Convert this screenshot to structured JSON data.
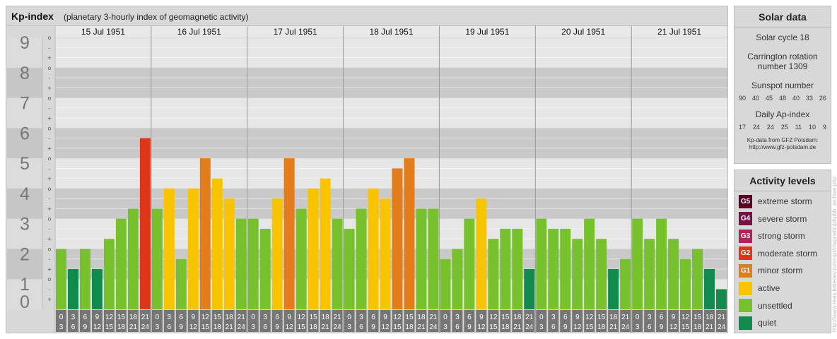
{
  "title": {
    "main": "Kp-index",
    "sub": "(planetary 3-hourly index of geomagnetic activity)"
  },
  "colors": {
    "quiet": "#118a4e",
    "unsettled": "#77c12c",
    "active": "#f8c400",
    "G1": "#e37d1c",
    "G2": "#de3518",
    "G3": "#b0225a",
    "G4": "#7a0f46",
    "G5": "#5b0025"
  },
  "chart_data": {
    "type": "bar",
    "ylim": [
      0,
      9
    ],
    "y_ticks": [
      "0",
      "1",
      "2",
      "3",
      "4",
      "5",
      "6",
      "7",
      "8",
      "9"
    ],
    "sub_ticks": [
      "-",
      "o",
      "+"
    ],
    "days": [
      "15 Jul 1951",
      "16 Jul 1951",
      "17 Jul 1951",
      "18 Jul 1951",
      "19 Jul 1951",
      "20 Jul 1951",
      "21 Jul 1951"
    ],
    "hour_labels": [
      [
        "0",
        "3"
      ],
      [
        "3",
        "6"
      ],
      [
        "6",
        "9"
      ],
      [
        "9",
        "12"
      ],
      [
        "12",
        "15"
      ],
      [
        "15",
        "18"
      ],
      [
        "18",
        "21"
      ],
      [
        "21",
        "24"
      ]
    ],
    "values": [
      [
        2.0,
        1.333,
        2.0,
        1.333,
        2.333,
        3.0,
        3.333,
        5.667
      ],
      [
        3.333,
        4.0,
        1.667,
        4.0,
        5.0,
        4.333,
        3.667,
        3.0
      ],
      [
        3.0,
        2.667,
        3.667,
        5.0,
        3.333,
        4.0,
        4.333,
        3.0
      ],
      [
        2.667,
        3.333,
        4.0,
        3.667,
        4.667,
        5.0,
        3.333,
        3.333
      ],
      [
        1.667,
        2.0,
        3.0,
        3.667,
        2.333,
        2.667,
        2.667,
        1.333
      ],
      [
        3.0,
        2.667,
        2.667,
        2.333,
        3.0,
        2.333,
        1.333,
        1.667
      ],
      [
        3.0,
        2.333,
        3.0,
        2.333,
        1.667,
        2.0,
        1.333,
        0.667
      ]
    ],
    "categories": [
      "quiet",
      "unsettled",
      "unsettled",
      "active",
      "minor storm",
      "moderate storm"
    ]
  },
  "solar": {
    "title": "Solar data",
    "cycle": "Solar cycle 18",
    "carrington_1": "Carrington rotation",
    "carrington_2": "number 1309",
    "sunspot_title": "Sunspot number",
    "sunspot_values": [
      "90",
      "40",
      "45",
      "48",
      "40",
      "33",
      "26"
    ],
    "ap_title": "Daily Ap-index",
    "ap_values": [
      "17",
      "24",
      "24",
      "25",
      "11",
      "10",
      "9"
    ],
    "credit_1": "Kp-data from GFZ Potsdam:",
    "credit_2": "http://www.gfz-potsdam.de"
  },
  "activity": {
    "title": "Activity levels",
    "items": [
      {
        "code": "G5",
        "label": "extreme storm",
        "color": "#5b0025"
      },
      {
        "code": "G4",
        "label": "severe storm",
        "color": "#7a0f46"
      },
      {
        "code": "G3",
        "label": "strong storm",
        "color": "#b0225a"
      },
      {
        "code": "G2",
        "label": "moderate storm",
        "color": "#de3518"
      },
      {
        "code": "G1",
        "label": "minor storm",
        "color": "#e37d1c"
      },
      {
        "code": "",
        "label": "active",
        "color": "#f8c400"
      },
      {
        "code": "",
        "label": "unsettled",
        "color": "#77c12c"
      },
      {
        "code": "",
        "label": "quiet",
        "color": "#118a4e"
      }
    ]
  },
  "vertical_credit": "http://www.tesis.lebedev.ru/en/pr/magnetic/phpbb_archive.php"
}
